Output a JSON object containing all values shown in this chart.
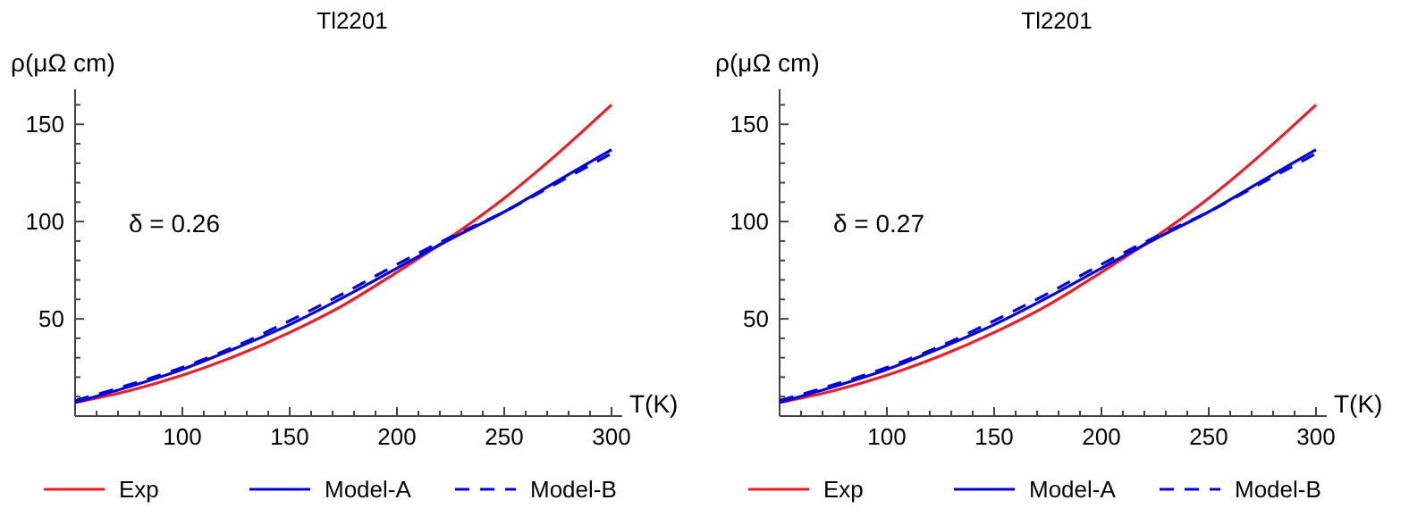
{
  "chart_data": [
    {
      "type": "line",
      "title": "Tl2201",
      "xlabel": "T(K)",
      "ylabel": "ρ(μΩ cm)",
      "annotations": [
        "δ = 0.26"
      ],
      "x": [
        50,
        75,
        100,
        125,
        150,
        175,
        200,
        225,
        250,
        275,
        300
      ],
      "xlim": [
        50,
        305
      ],
      "ylim": [
        0,
        168
      ],
      "xticks": [
        {
          "value": 60,
          "label": null
        },
        {
          "value": 70,
          "label": null
        },
        {
          "value": 80,
          "label": null
        },
        {
          "value": 90,
          "label": null
        },
        100,
        {
          "value": 110,
          "label": null
        },
        {
          "value": 120,
          "label": null
        },
        {
          "value": 130,
          "label": null
        },
        {
          "value": 140,
          "label": null
        },
        150,
        {
          "value": 160,
          "label": null
        },
        {
          "value": 170,
          "label": null
        },
        {
          "value": 180,
          "label": null
        },
        {
          "value": 190,
          "label": null
        },
        200,
        {
          "value": 210,
          "label": null
        },
        {
          "value": 220,
          "label": null
        },
        {
          "value": 230,
          "label": null
        },
        {
          "value": 240,
          "label": null
        },
        250,
        {
          "value": 260,
          "label": null
        },
        {
          "value": 270,
          "label": null
        },
        {
          "value": 280,
          "label": null
        },
        {
          "value": 290,
          "label": null
        },
        300
      ],
      "yticks": [
        {
          "value": 10,
          "label": null
        },
        {
          "value": 20,
          "label": null
        },
        {
          "value": 30,
          "label": null
        },
        {
          "value": 40,
          "label": null
        },
        50,
        {
          "value": 60,
          "label": null
        },
        {
          "value": 70,
          "label": null
        },
        {
          "value": 80,
          "label": null
        },
        {
          "value": 90,
          "label": null
        },
        100,
        {
          "value": 110,
          "label": null
        },
        {
          "value": 120,
          "label": null
        },
        {
          "value": 130,
          "label": null
        },
        {
          "value": 140,
          "label": null
        },
        150,
        {
          "value": 160,
          "label": null
        }
      ],
      "legend": "bottom",
      "grid": false,
      "series": [
        {
          "name": "Exp",
          "color": "#ee1c25",
          "line_style": "solid",
          "values": [
            7,
            13,
            21,
            31,
            43,
            57,
            74,
            92,
            112,
            135,
            160
          ]
        },
        {
          "name": "Model-A",
          "color": "#0000dd",
          "line_style": "solid",
          "values": [
            7,
            15,
            24,
            35,
            47,
            61,
            76,
            91,
            105,
            121,
            137
          ]
        },
        {
          "name": "Model-B",
          "color": "#0000dd",
          "line_style": "dashed",
          "values": [
            8,
            16,
            25,
            36,
            49,
            63,
            78,
            92,
            105,
            120,
            135
          ]
        }
      ]
    },
    {
      "type": "line",
      "title": "Tl2201",
      "xlabel": "T(K)",
      "ylabel": "ρ(μΩ cm)",
      "annotations": [
        "δ = 0.27"
      ],
      "x": [
        50,
        75,
        100,
        125,
        150,
        175,
        200,
        225,
        250,
        275,
        300
      ],
      "xlim": [
        50,
        305
      ],
      "ylim": [
        0,
        168
      ],
      "xticks": [
        {
          "value": 60,
          "label": null
        },
        {
          "value": 70,
          "label": null
        },
        {
          "value": 80,
          "label": null
        },
        {
          "value": 90,
          "label": null
        },
        100,
        {
          "value": 110,
          "label": null
        },
        {
          "value": 120,
          "label": null
        },
        {
          "value": 130,
          "label": null
        },
        {
          "value": 140,
          "label": null
        },
        150,
        {
          "value": 160,
          "label": null
        },
        {
          "value": 170,
          "label": null
        },
        {
          "value": 180,
          "label": null
        },
        {
          "value": 190,
          "label": null
        },
        200,
        {
          "value": 210,
          "label": null
        },
        {
          "value": 220,
          "label": null
        },
        {
          "value": 230,
          "label": null
        },
        {
          "value": 240,
          "label": null
        },
        250,
        {
          "value": 260,
          "label": null
        },
        {
          "value": 270,
          "label": null
        },
        {
          "value": 280,
          "label": null
        },
        {
          "value": 290,
          "label": null
        },
        300
      ],
      "yticks": [
        {
          "value": 10,
          "label": null
        },
        {
          "value": 20,
          "label": null
        },
        {
          "value": 30,
          "label": null
        },
        {
          "value": 40,
          "label": null
        },
        50,
        {
          "value": 60,
          "label": null
        },
        {
          "value": 70,
          "label": null
        },
        {
          "value": 80,
          "label": null
        },
        {
          "value": 90,
          "label": null
        },
        100,
        {
          "value": 110,
          "label": null
        },
        {
          "value": 120,
          "label": null
        },
        {
          "value": 130,
          "label": null
        },
        {
          "value": 140,
          "label": null
        },
        150,
        {
          "value": 160,
          "label": null
        }
      ],
      "legend": "bottom",
      "grid": false,
      "series": [
        {
          "name": "Exp",
          "color": "#ee1c25",
          "line_style": "solid",
          "values": [
            7,
            13,
            21,
            31,
            43,
            57,
            74,
            92,
            112,
            135,
            160
          ]
        },
        {
          "name": "Model-A",
          "color": "#0000dd",
          "line_style": "solid",
          "values": [
            7,
            15,
            24,
            35,
            47,
            61,
            76,
            91,
            105,
            121,
            137
          ]
        },
        {
          "name": "Model-B",
          "color": "#0000dd",
          "line_style": "dashed",
          "values": [
            8,
            16,
            25,
            36,
            49,
            63,
            78,
            92,
            105,
            120,
            135
          ]
        }
      ]
    }
  ]
}
